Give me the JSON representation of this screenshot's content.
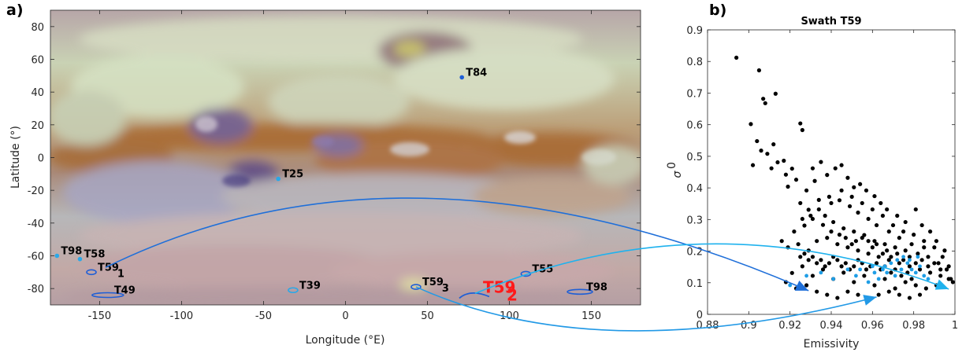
{
  "panel_a_label": "a)",
  "panel_b_label": "b)",
  "chart_data": [
    {
      "type": "map",
      "xlabel": "Longitude (°E)",
      "ylabel": "Latitude (°)",
      "xlim": [
        -180,
        180
      ],
      "ylim": [
        -90,
        90
      ],
      "xticks": [
        -150,
        -100,
        -50,
        0,
        50,
        100,
        150
      ],
      "yticks": [
        -80,
        -60,
        -40,
        -20,
        0,
        20,
        40,
        60,
        80
      ],
      "swaths": [
        {
          "label": "T84",
          "sub": "",
          "lon": 71,
          "lat": 49,
          "color": "#1f5fd6",
          "shape": "dot"
        },
        {
          "label": "T25",
          "sub": "",
          "lon": -41,
          "lat": -13,
          "color": "#2aa8e8",
          "shape": "dot"
        },
        {
          "label": "T98",
          "sub": "",
          "lon": -176,
          "lat": -60,
          "color": "#2aa8e8",
          "shape": "dot"
        },
        {
          "label": "T58",
          "sub": "",
          "lon": -162,
          "lat": -62,
          "color": "#2aa8e8",
          "shape": "dot"
        },
        {
          "label": "T59",
          "sub": "1",
          "lon": -155,
          "lat": -70,
          "color": "#1f5fd6",
          "shape": "ellipse"
        },
        {
          "label": "T49",
          "sub": "",
          "lon": -145,
          "lat": -84,
          "color": "#1f5fd6",
          "shape": "ellipse"
        },
        {
          "label": "T39",
          "sub": "",
          "lon": -32,
          "lat": -81,
          "color": "#2aa8e8",
          "shape": "ellipse"
        },
        {
          "label": "T59",
          "sub": "3",
          "lon": 43,
          "lat": -79,
          "color": "#1f5fd6",
          "shape": "ellipse"
        },
        {
          "label": "T55",
          "sub": "",
          "lon": 110,
          "lat": -71,
          "color": "#1f5fd6",
          "shape": "ellipse"
        },
        {
          "label": "T98",
          "sub": "",
          "lon": 143,
          "lat": -82,
          "color": "#1f5fd6",
          "shape": "ellipse"
        }
      ],
      "highlight": {
        "label": "T59",
        "sub": "2",
        "lon": 80,
        "lat": -83,
        "color": "#ff1a1a"
      }
    },
    {
      "type": "scatter",
      "title": "Swath T59",
      "xlabel": "Emissivity",
      "ylabel": "σ",
      "ylabel_sup": "0",
      "xlim": [
        0.88,
        1.0
      ],
      "ylim": [
        0,
        0.9
      ],
      "xticks": [
        0.88,
        0.9,
        0.92,
        0.94,
        0.96,
        0.98,
        1
      ],
      "yticks": [
        0,
        0.1,
        0.2,
        0.3,
        0.4,
        0.5,
        0.6,
        0.7,
        0.8,
        0.9
      ],
      "tick_labels_x": [
        "0.88",
        "0.9",
        "0.92",
        "0.94",
        "0.96",
        "0.98",
        "1"
      ],
      "tick_labels_y": [
        "0",
        "0.1",
        "0.2",
        "0.3",
        "0.4",
        "0.5",
        "0.6",
        "0.7",
        "0.8",
        "0.9"
      ],
      "series": [
        {
          "color": "#000000",
          "points": [
            [
              0.894,
              0.812
            ],
            [
              0.905,
              0.772
            ],
            [
              0.907,
              0.682
            ],
            [
              0.908,
              0.668
            ],
            [
              0.913,
              0.698
            ],
            [
              0.901,
              0.602
            ],
            [
              0.904,
              0.548
            ],
            [
              0.906,
              0.518
            ],
            [
              0.911,
              0.462
            ],
            [
              0.917,
              0.486
            ],
            [
              0.921,
              0.461
            ],
            [
              0.925,
              0.604
            ],
            [
              0.926,
              0.583
            ],
            [
              0.902,
              0.472
            ],
            [
              0.909,
              0.508
            ],
            [
              0.912,
              0.538
            ],
            [
              0.914,
              0.481
            ],
            [
              0.918,
              0.442
            ],
            [
              0.919,
              0.404
            ],
            [
              0.923,
              0.426
            ],
            [
              0.928,
              0.392
            ],
            [
              0.931,
              0.462
            ],
            [
              0.932,
              0.422
            ],
            [
              0.935,
              0.482
            ],
            [
              0.938,
              0.441
            ],
            [
              0.942,
              0.462
            ],
            [
              0.945,
              0.472
            ],
            [
              0.948,
              0.432
            ],
            [
              0.951,
              0.402
            ],
            [
              0.954,
              0.412
            ],
            [
              0.957,
              0.392
            ],
            [
              0.961,
              0.374
            ],
            [
              0.964,
              0.352
            ],
            [
              0.967,
              0.332
            ],
            [
              0.972,
              0.312
            ],
            [
              0.976,
              0.292
            ],
            [
              0.981,
              0.332
            ],
            [
              0.984,
              0.282
            ],
            [
              0.988,
              0.262
            ],
            [
              0.991,
              0.232
            ],
            [
              0.995,
              0.202
            ],
            [
              0.998,
              0.112
            ],
            [
              0.999,
              0.102
            ],
            [
              0.925,
              0.352
            ],
            [
              0.929,
              0.331
            ],
            [
              0.934,
              0.362
            ],
            [
              0.939,
              0.372
            ],
            [
              0.944,
              0.361
            ],
            [
              0.949,
              0.342
            ],
            [
              0.953,
              0.322
            ],
            [
              0.958,
              0.302
            ],
            [
              0.962,
              0.282
            ],
            [
              0.968,
              0.262
            ],
            [
              0.973,
              0.242
            ],
            [
              0.979,
              0.222
            ],
            [
              0.985,
              0.212
            ],
            [
              0.922,
              0.262
            ],
            [
              0.927,
              0.281
            ],
            [
              0.931,
              0.302
            ],
            [
              0.936,
              0.283
            ],
            [
              0.941,
              0.292
            ],
            [
              0.946,
              0.272
            ],
            [
              0.951,
              0.262
            ],
            [
              0.956,
              0.251
            ],
            [
              0.961,
              0.232
            ],
            [
              0.966,
              0.222
            ],
            [
              0.971,
              0.212
            ],
            [
              0.976,
              0.202
            ],
            [
              0.982,
              0.192
            ],
            [
              0.987,
              0.182
            ],
            [
              0.992,
              0.162
            ],
            [
              0.996,
              0.142
            ],
            [
              0.916,
              0.232
            ],
            [
              0.919,
              0.212
            ],
            [
              0.924,
              0.222
            ],
            [
              0.929,
              0.202
            ],
            [
              0.933,
              0.232
            ],
            [
              0.938,
              0.242
            ],
            [
              0.943,
              0.222
            ],
            [
              0.948,
              0.212
            ],
            [
              0.953,
              0.202
            ],
            [
              0.958,
              0.192
            ],
            [
              0.963,
              0.182
            ],
            [
              0.968,
              0.172
            ],
            [
              0.973,
              0.162
            ],
            [
              0.978,
              0.152
            ],
            [
              0.983,
              0.142
            ],
            [
              0.988,
              0.132
            ],
            [
              0.993,
              0.122
            ],
            [
              0.997,
              0.112
            ],
            [
              0.921,
              0.131
            ],
            [
              0.926,
              0.152
            ],
            [
              0.931,
              0.122
            ],
            [
              0.936,
              0.142
            ],
            [
              0.941,
              0.112
            ],
            [
              0.946,
              0.132
            ],
            [
              0.951,
              0.102
            ],
            [
              0.956,
              0.122
            ],
            [
              0.961,
              0.092
            ],
            [
              0.966,
              0.112
            ],
            [
              0.971,
              0.082
            ],
            [
              0.976,
              0.102
            ],
            [
              0.981,
              0.092
            ],
            [
              0.986,
              0.082
            ],
            [
              0.991,
              0.092
            ],
            [
              0.918,
              0.102
            ],
            [
              0.923,
              0.082
            ],
            [
              0.928,
              0.092
            ],
            [
              0.933,
              0.072
            ],
            [
              0.938,
              0.062
            ],
            [
              0.943,
              0.052
            ],
            [
              0.948,
              0.072
            ],
            [
              0.953,
              0.062
            ],
            [
              0.958,
              0.052
            ],
            [
              0.963,
              0.062
            ],
            [
              0.968,
              0.072
            ],
            [
              0.973,
              0.062
            ],
            [
              0.978,
              0.052
            ],
            [
              0.983,
              0.062
            ],
            [
              0.962,
              0.162
            ],
            [
              0.964,
              0.142
            ],
            [
              0.966,
              0.152
            ],
            [
              0.969,
              0.132
            ],
            [
              0.971,
              0.142
            ],
            [
              0.974,
              0.122
            ],
            [
              0.977,
              0.132
            ],
            [
              0.979,
              0.112
            ],
            [
              0.957,
              0.142
            ],
            [
              0.959,
              0.152
            ],
            [
              0.955,
              0.162
            ],
            [
              0.953,
              0.172
            ],
            [
              0.951,
              0.152
            ],
            [
              0.949,
              0.142
            ],
            [
              0.947,
              0.162
            ],
            [
              0.945,
              0.152
            ],
            [
              0.943,
              0.172
            ],
            [
              0.941,
              0.182
            ],
            [
              0.939,
              0.162
            ],
            [
              0.937,
              0.152
            ],
            [
              0.935,
              0.172
            ],
            [
              0.933,
              0.162
            ],
            [
              0.931,
              0.182
            ],
            [
              0.929,
              0.172
            ],
            [
              0.927,
              0.192
            ],
            [
              0.925,
              0.182
            ],
            [
              0.965,
              0.192
            ],
            [
              0.967,
              0.202
            ],
            [
              0.969,
              0.182
            ],
            [
              0.972,
              0.192
            ],
            [
              0.975,
              0.172
            ],
            [
              0.978,
              0.182
            ],
            [
              0.981,
              0.162
            ],
            [
              0.984,
              0.172
            ],
            [
              0.987,
              0.152
            ],
            [
              0.99,
              0.162
            ],
            [
              0.993,
              0.142
            ],
            [
              0.96,
              0.212
            ],
            [
              0.962,
              0.222
            ],
            [
              0.958,
              0.232
            ],
            [
              0.955,
              0.242
            ],
            [
              0.952,
              0.232
            ],
            [
              0.95,
              0.222
            ],
            [
              0.947,
              0.242
            ],
            [
              0.944,
              0.252
            ],
            [
              0.94,
              0.262
            ],
            [
              0.937,
              0.312
            ],
            [
              0.934,
              0.332
            ],
            [
              0.93,
              0.312
            ],
            [
              0.926,
              0.302
            ],
            [
              0.94,
              0.352
            ],
            [
              0.945,
              0.392
            ],
            [
              0.95,
              0.372
            ],
            [
              0.955,
              0.352
            ],
            [
              0.96,
              0.332
            ],
            [
              0.965,
              0.312
            ],
            [
              0.97,
              0.282
            ],
            [
              0.975,
              0.262
            ],
            [
              0.98,
              0.252
            ],
            [
              0.985,
              0.232
            ],
            [
              0.99,
              0.212
            ],
            [
              0.994,
              0.182
            ],
            [
              0.997,
              0.152
            ]
          ]
        },
        {
          "color": "#1f9ee6",
          "points": [
            [
              0.92,
              0.092
            ],
            [
              0.928,
              0.122
            ],
            [
              0.935,
              0.132
            ],
            [
              0.941,
              0.112
            ],
            [
              0.948,
              0.142
            ],
            [
              0.952,
              0.122
            ],
            [
              0.958,
              0.102
            ],
            [
              0.961,
              0.132
            ],
            [
              0.966,
              0.152
            ],
            [
              0.969,
              0.162
            ],
            [
              0.972,
              0.172
            ],
            [
              0.975,
              0.182
            ],
            [
              0.977,
              0.162
            ],
            [
              0.979,
              0.142
            ],
            [
              0.981,
              0.132
            ],
            [
              0.983,
              0.152
            ],
            [
              0.985,
              0.122
            ],
            [
              0.987,
              0.112
            ],
            [
              0.963,
              0.112
            ],
            [
              0.967,
              0.132
            ],
            [
              0.971,
              0.122
            ],
            [
              0.974,
              0.142
            ],
            [
              0.978,
              0.172
            ],
            [
              0.982,
              0.182
            ],
            [
              0.954,
              0.142
            ],
            [
              0.96,
              0.152
            ],
            [
              0.965,
              0.142
            ]
          ]
        }
      ],
      "arrows": [
        {
          "from": "T59_1",
          "to": [
            0.929,
            0.075
          ],
          "color": "#1f6fd9"
        },
        {
          "from": "T59_2",
          "to": [
            0.997,
            0.08
          ],
          "color": "#1fb2ee"
        },
        {
          "from": "T59_3",
          "to": [
            0.962,
            0.055
          ],
          "color": "#2299e6"
        }
      ]
    }
  ]
}
